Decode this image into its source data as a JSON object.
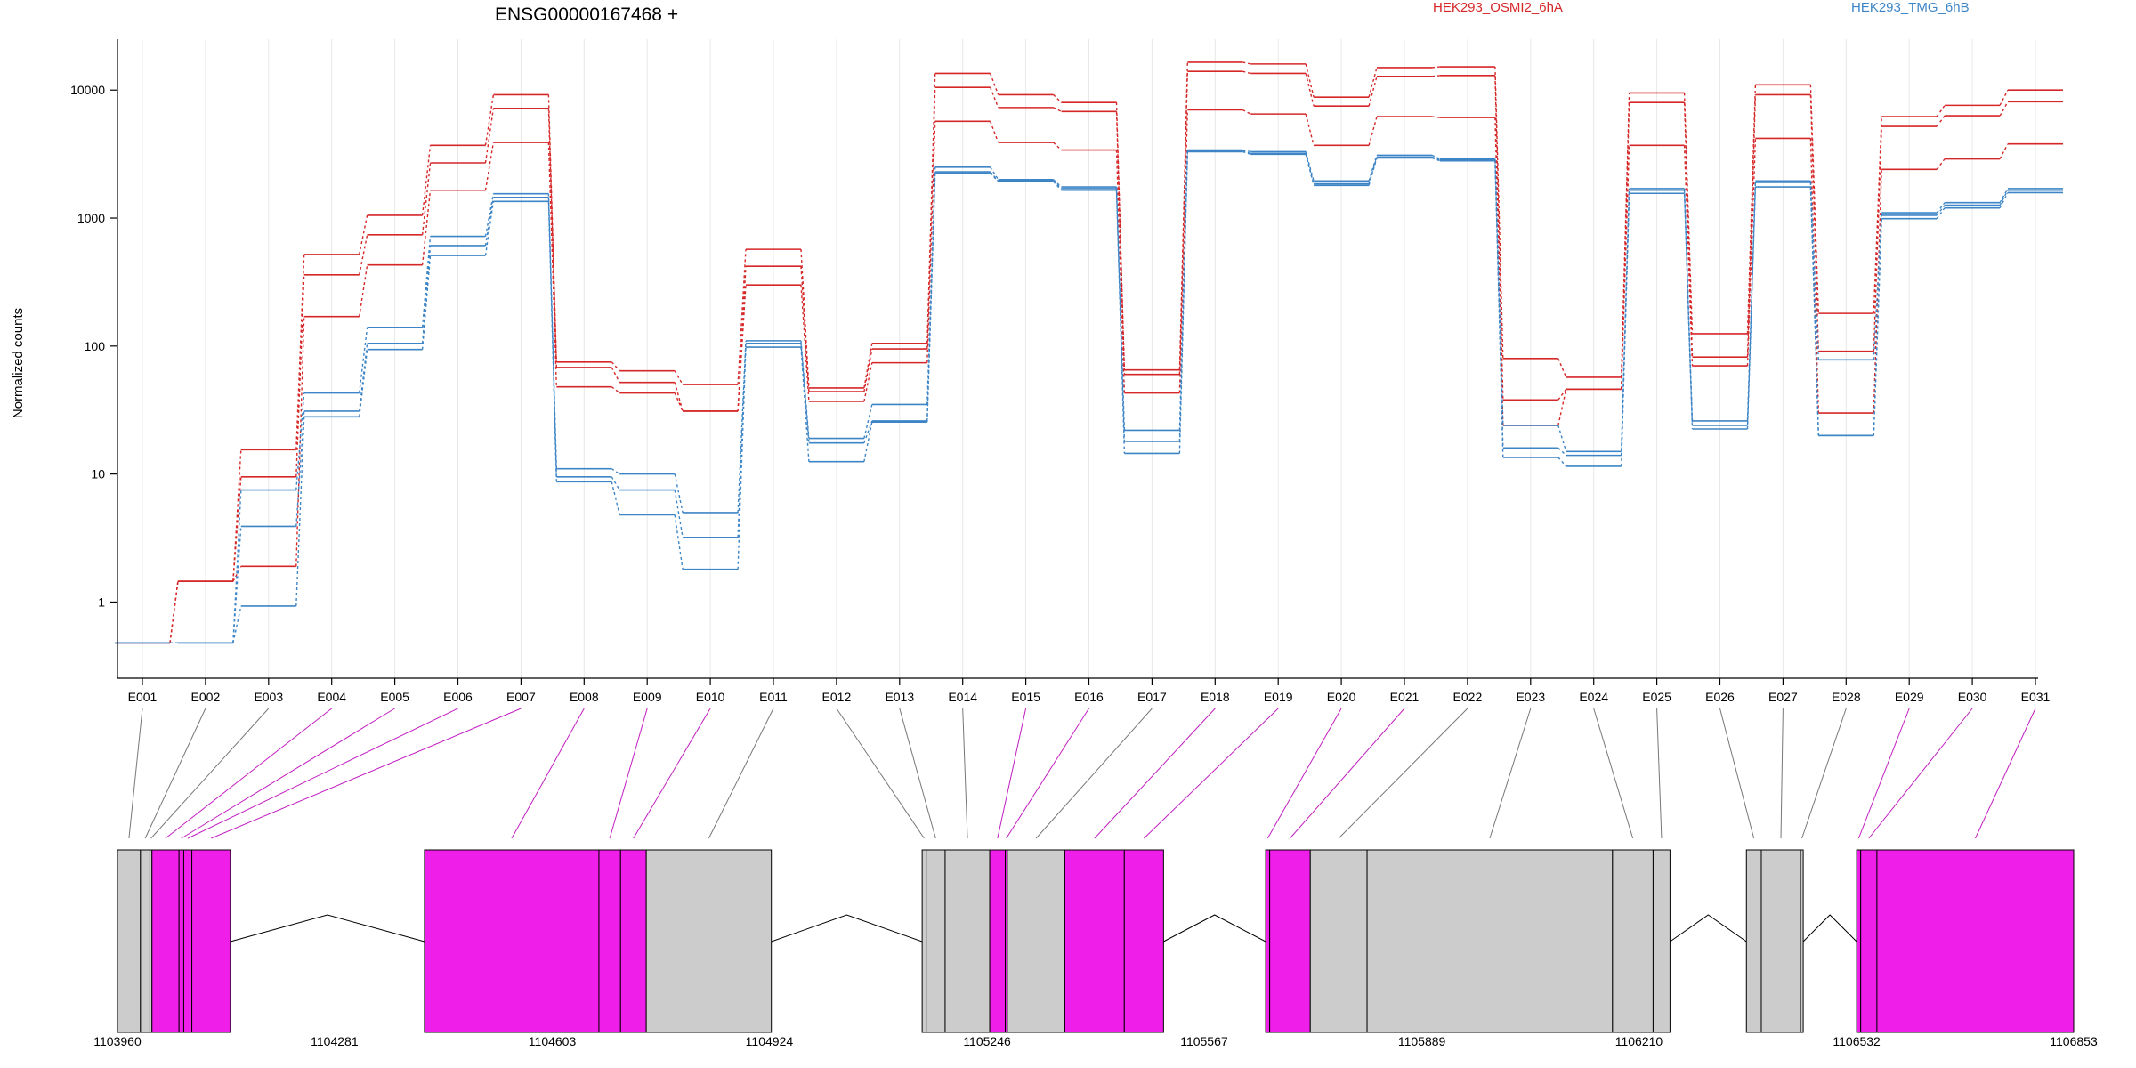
{
  "chart_data": {
    "type": "line",
    "title": "ENSG00000167468 +",
    "ylabel": "Normalized counts",
    "xlabel": "",
    "yscale": "log",
    "ylim": [
      0.35,
      25000
    ],
    "y_ticks": [
      1,
      10,
      100,
      1000,
      10000
    ],
    "grid": "vertical",
    "legend_position": "top",
    "categories": [
      "E001",
      "E002",
      "E003",
      "E004",
      "E005",
      "E006",
      "E007",
      "E008",
      "E009",
      "E010",
      "E011",
      "E012",
      "E013",
      "E014",
      "E015",
      "E016",
      "E017",
      "E018",
      "E019",
      "E020",
      "E021",
      "E022",
      "E023",
      "E024",
      "E025",
      "E026",
      "E027",
      "E028",
      "E029",
      "E030",
      "E031"
    ],
    "groups": [
      {
        "name": "HEK293_OSMI2_6hA",
        "color": "#d62728"
      },
      {
        "name": "HEK293_TMG_6hB",
        "color": "#3d85c6"
      }
    ],
    "series": [
      {
        "group": 0,
        "values": [
          0.48,
          1.45,
          15.5,
          520,
          1050,
          3700,
          9200,
          75,
          64,
          50,
          570,
          47,
          105,
          13500,
          9200,
          8000,
          65,
          16500,
          16000,
          8800,
          15000,
          15200,
          80,
          57,
          9500,
          125,
          11000,
          180,
          6200,
          7600,
          10000
        ]
      },
      {
        "group": 0,
        "values": [
          0.48,
          1.45,
          9.5,
          360,
          740,
          2700,
          7200,
          68,
          52,
          31,
          420,
          44,
          95,
          10500,
          7300,
          6800,
          60,
          14000,
          13500,
          7500,
          12800,
          13000,
          38,
          46,
          8000,
          82,
          9200,
          91,
          5200,
          6300,
          8100
        ]
      },
      {
        "group": 0,
        "values": [
          0.48,
          1.45,
          1.9,
          170,
          430,
          1650,
          3900,
          48,
          43,
          31,
          300,
          37,
          74,
          5700,
          3900,
          3400,
          43,
          7000,
          6500,
          3700,
          6200,
          6100,
          24,
          46,
          3700,
          70,
          4200,
          30,
          2400,
          2900,
          3800
        ]
      },
      {
        "group": 1,
        "values": [
          0.48,
          0.48,
          7.5,
          43,
          140,
          720,
          1550,
          11,
          10,
          5,
          110,
          19,
          35,
          2500,
          2000,
          1750,
          22,
          3400,
          3300,
          1950,
          3100,
          2900,
          24,
          15,
          1700,
          26,
          1950,
          78,
          1100,
          1320,
          1700
        ]
      },
      {
        "group": 1,
        "values": [
          0.48,
          0.48,
          3.9,
          31,
          105,
          610,
          1450,
          9.5,
          7.5,
          3.2,
          105,
          17.5,
          26,
          2300,
          1950,
          1700,
          18,
          3350,
          3200,
          1850,
          3000,
          2850,
          16,
          14,
          1650,
          24,
          1900,
          20,
          1050,
          1260,
          1650
        ]
      },
      {
        "group": 1,
        "values": [
          0.48,
          0.48,
          0.93,
          28,
          94,
          510,
          1350,
          8.7,
          4.8,
          1.8,
          98,
          12.5,
          25.5,
          2250,
          1930,
          1650,
          14.5,
          3300,
          3150,
          1800,
          2950,
          2800,
          13.5,
          11.5,
          1560,
          22.5,
          1750,
          20,
          990,
          1200,
          1580
        ]
      }
    ],
    "gene_model": {
      "coord_ticks": [
        "1103960",
        "1104281",
        "1104603",
        "1104924",
        "1105246",
        "1105567",
        "1105889",
        "1106210",
        "1106532",
        "1106853"
      ],
      "exon_colors": [
        "#f01ee9",
        "#cccccc"
      ],
      "exons": [
        {
          "id": "E001",
          "start": 1103960,
          "end": 1103994,
          "differential": false
        },
        {
          "id": "E002",
          "start": 1103994,
          "end": 1104008,
          "differential": false
        },
        {
          "id": "E003",
          "start": 1104008,
          "end": 1104011,
          "differential": false
        },
        {
          "id": "E004",
          "start": 1104011,
          "end": 1104051,
          "differential": true
        },
        {
          "id": "E005",
          "start": 1104051,
          "end": 1104058,
          "differential": true
        },
        {
          "id": "E006",
          "start": 1104058,
          "end": 1104070,
          "differential": true
        },
        {
          "id": "E007",
          "start": 1104070,
          "end": 1104127,
          "differential": true
        },
        {
          "id": "E008",
          "start": 1104414,
          "end": 1104672,
          "differential": true
        },
        {
          "id": "E009",
          "start": 1104672,
          "end": 1104704,
          "differential": true
        },
        {
          "id": "E010",
          "start": 1104704,
          "end": 1104742,
          "differential": true
        },
        {
          "id": "E011",
          "start": 1104742,
          "end": 1104927,
          "differential": false
        },
        {
          "id": "E012",
          "start": 1105150,
          "end": 1105156,
          "differential": false
        },
        {
          "id": "E013",
          "start": 1105156,
          "end": 1105184,
          "differential": false
        },
        {
          "id": "E014",
          "start": 1105184,
          "end": 1105250,
          "differential": false
        },
        {
          "id": "E015",
          "start": 1105250,
          "end": 1105273,
          "differential": true
        },
        {
          "id": "E016",
          "start": 1105273,
          "end": 1105276,
          "differential": true
        },
        {
          "id": "E017",
          "start": 1105276,
          "end": 1105361,
          "differential": false
        },
        {
          "id": "E018",
          "start": 1105361,
          "end": 1105449,
          "differential": true
        },
        {
          "id": "E019",
          "start": 1105449,
          "end": 1105507,
          "differential": true
        },
        {
          "id": "E020",
          "start": 1105658,
          "end": 1105664,
          "differential": true
        },
        {
          "id": "E021",
          "start": 1105664,
          "end": 1105724,
          "differential": true
        },
        {
          "id": "E022",
          "start": 1105724,
          "end": 1105808,
          "differential": false
        },
        {
          "id": "E023",
          "start": 1105808,
          "end": 1106171,
          "differential": false
        },
        {
          "id": "E024",
          "start": 1106171,
          "end": 1106231,
          "differential": false
        },
        {
          "id": "E025",
          "start": 1106231,
          "end": 1106256,
          "differential": false
        },
        {
          "id": "E026",
          "start": 1106369,
          "end": 1106391,
          "differential": false
        },
        {
          "id": "E027",
          "start": 1106391,
          "end": 1106449,
          "differential": false
        },
        {
          "id": "E028",
          "start": 1106449,
          "end": 1106453,
          "differential": false
        },
        {
          "id": "E029",
          "start": 1106532,
          "end": 1106538,
          "differential": true
        },
        {
          "id": "E030",
          "start": 1106538,
          "end": 1106562,
          "differential": true
        },
        {
          "id": "E031",
          "start": 1106562,
          "end": 1106853,
          "differential": true
        }
      ]
    }
  }
}
